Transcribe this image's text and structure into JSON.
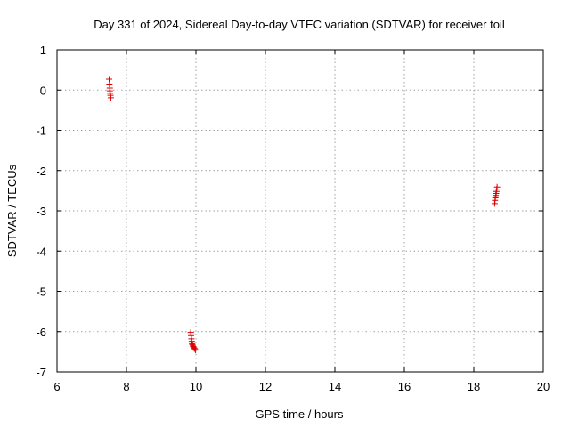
{
  "chart_data": {
    "type": "scatter",
    "title": "Day 331 of 2024, Sidereal Day-to-day VTEC variation (SDTVAR) for receiver toil",
    "xlabel": "GPS time / hours",
    "ylabel": "SDTVAR / TECUs",
    "xlim": [
      6,
      20
    ],
    "ylim": [
      -7,
      1
    ],
    "xticks": [
      6,
      8,
      10,
      12,
      14,
      16,
      18,
      20
    ],
    "yticks": [
      1,
      0,
      -1,
      -2,
      -3,
      -4,
      -5,
      -6,
      -7
    ],
    "grid": true,
    "marker": "+",
    "color": "#e00000",
    "series": [
      {
        "name": "SDTVAR",
        "x": [
          7.5,
          7.51,
          7.52,
          7.52,
          7.53,
          7.54,
          7.55,
          9.85,
          9.86,
          9.87,
          9.88,
          9.89,
          9.9,
          9.91,
          9.93,
          9.95,
          9.97,
          9.99,
          18.6,
          18.61,
          18.62,
          18.63,
          18.64,
          18.65,
          18.66,
          18.67
        ],
        "y": [
          0.27,
          0.15,
          0.05,
          -0.02,
          -0.08,
          -0.13,
          -0.19,
          -6.02,
          -6.1,
          -6.18,
          -6.24,
          -6.3,
          -6.33,
          -6.36,
          -6.38,
          -6.41,
          -6.43,
          -6.46,
          -2.82,
          -2.74,
          -2.68,
          -2.62,
          -2.57,
          -2.52,
          -2.46,
          -2.41
        ]
      }
    ]
  }
}
